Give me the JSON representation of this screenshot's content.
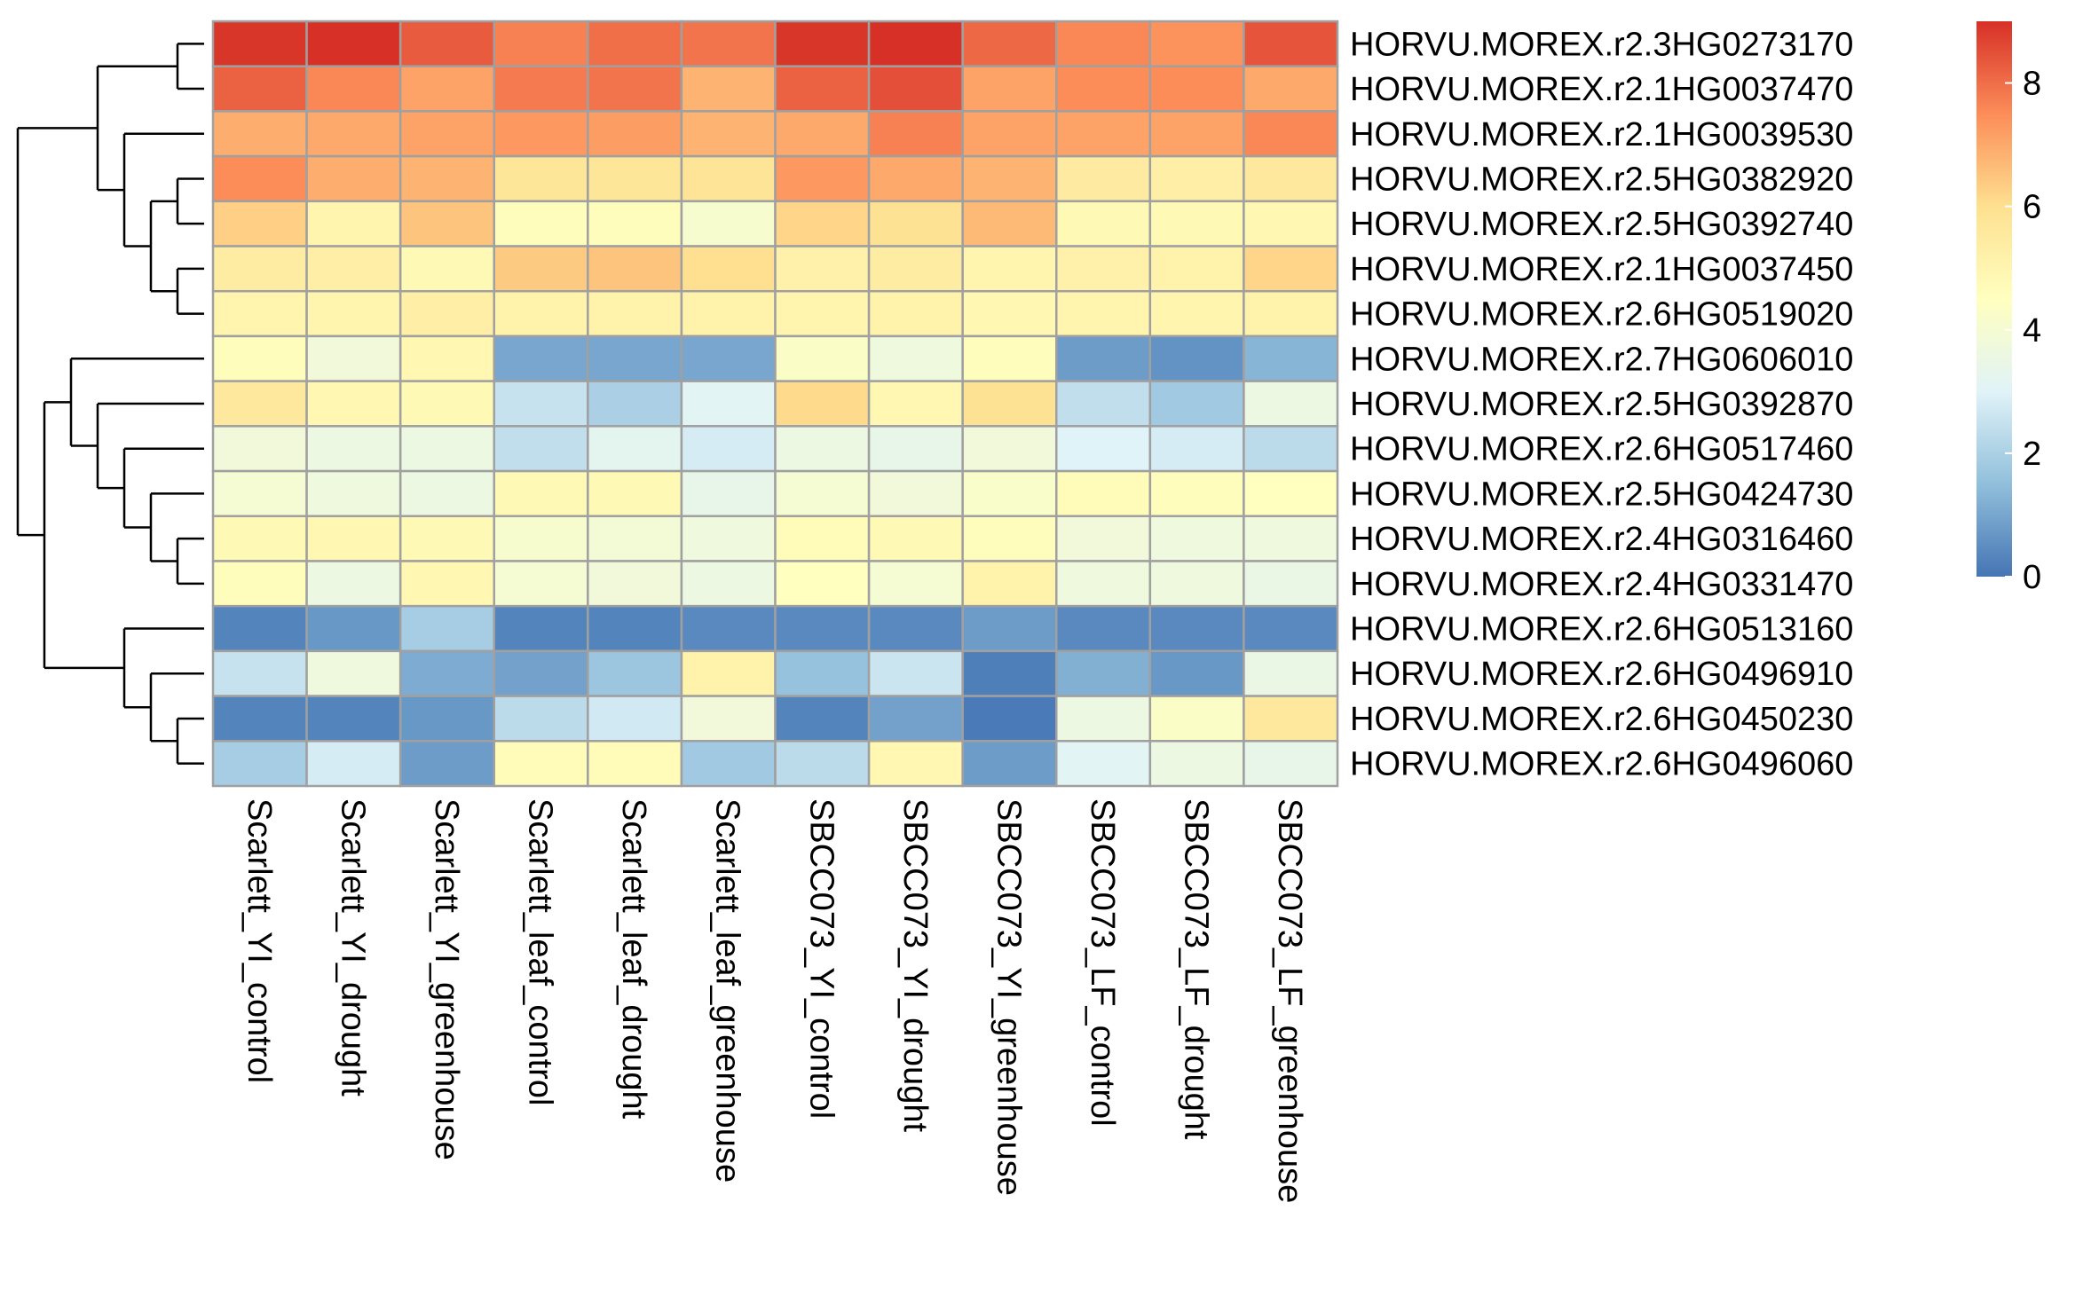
{
  "chart_data": {
    "type": "heatmap",
    "title": "",
    "columns": [
      "Scarlett_YI_control",
      "Scarlett_YI_drought",
      "Scarlett_YI_greenhouse",
      "Scarlett_leaf_control",
      "Scarlett_leaf_drought",
      "Scarlett_leaf_greenhouse",
      "SBCC073_YI_control",
      "SBCC073_YI_drought",
      "SBCC073_YI_greenhouse",
      "SBCC073_LF_control",
      "SBCC073_LF_drought",
      "SBCC073_LF_greenhouse"
    ],
    "rows": [
      "HORVU.MOREX.r2.3HG0273170",
      "HORVU.MOREX.r2.1HG0037470",
      "HORVU.MOREX.r2.1HG0039530",
      "HORVU.MOREX.r2.5HG0382920",
      "HORVU.MOREX.r2.5HG0392740",
      "HORVU.MOREX.r2.1HG0037450",
      "HORVU.MOREX.r2.6HG0519020",
      "HORVU.MOREX.r2.7HG0606010",
      "HORVU.MOREX.r2.5HG0392870",
      "HORVU.MOREX.r2.6HG0517460",
      "HORVU.MOREX.r2.5HG0424730",
      "HORVU.MOREX.r2.4HG0316460",
      "HORVU.MOREX.r2.4HG0331470",
      "HORVU.MOREX.r2.6HG0513160",
      "HORVU.MOREX.r2.6HG0496910",
      "HORVU.MOREX.r2.6HG0450230",
      "HORVU.MOREX.r2.6HG0496060"
    ],
    "values": [
      [
        8.9,
        9.0,
        8.3,
        7.7,
        8.0,
        7.9,
        8.9,
        9.0,
        8.1,
        7.6,
        7.4,
        8.4
      ],
      [
        8.2,
        7.6,
        7.1,
        7.8,
        7.9,
        6.8,
        8.2,
        8.5,
        7.1,
        7.5,
        7.5,
        7.0
      ],
      [
        6.9,
        7.0,
        7.1,
        7.3,
        7.2,
        6.8,
        7.0,
        7.7,
        7.1,
        7.1,
        7.1,
        7.6
      ],
      [
        7.5,
        6.9,
        6.8,
        5.7,
        5.7,
        5.8,
        7.3,
        7.0,
        6.8,
        5.5,
        5.3,
        5.6
      ],
      [
        6.3,
        5.0,
        6.5,
        4.6,
        4.6,
        4.1,
        6.2,
        5.9,
        6.7,
        4.8,
        4.8,
        4.9
      ],
      [
        5.4,
        5.3,
        4.8,
        6.4,
        6.5,
        6.0,
        5.2,
        5.4,
        5.0,
        5.2,
        5.1,
        6.2
      ],
      [
        5.0,
        5.0,
        5.3,
        5.1,
        5.1,
        5.1,
        5.0,
        5.1,
        4.9,
        5.0,
        5.0,
        5.1
      ],
      [
        4.6,
        3.8,
        4.9,
        1.0,
        1.0,
        1.0,
        4.3,
        3.7,
        4.6,
        0.8,
        0.6,
        1.3
      ],
      [
        5.6,
        4.9,
        4.8,
        2.5,
        2.0,
        3.1,
        6.1,
        4.9,
        5.9,
        2.4,
        1.8,
        3.6
      ],
      [
        3.8,
        3.6,
        3.6,
        2.4,
        3.2,
        2.8,
        3.6,
        3.4,
        3.8,
        3.0,
        2.8,
        2.3
      ],
      [
        4.0,
        3.7,
        3.6,
        4.8,
        4.8,
        3.4,
        4.0,
        3.8,
        4.2,
        4.7,
        4.6,
        4.5
      ],
      [
        4.8,
        4.9,
        4.8,
        4.1,
        3.9,
        3.7,
        4.7,
        4.8,
        4.6,
        3.8,
        3.7,
        3.7
      ],
      [
        4.6,
        3.6,
        4.9,
        4.0,
        3.8,
        3.6,
        4.5,
        4.0,
        5.1,
        3.7,
        3.7,
        3.5
      ],
      [
        0.3,
        0.7,
        1.9,
        0.3,
        0.3,
        0.4,
        0.4,
        0.4,
        0.8,
        0.4,
        0.4,
        0.4
      ],
      [
        2.5,
        3.7,
        1.1,
        0.9,
        1.7,
        5.1,
        1.6,
        2.6,
        0.2,
        1.2,
        0.7,
        3.5
      ],
      [
        0.3,
        0.3,
        0.7,
        2.3,
        2.7,
        3.8,
        0.3,
        0.9,
        0.1,
        3.6,
        4.3,
        5.6
      ],
      [
        1.9,
        2.8,
        0.8,
        4.7,
        4.7,
        1.8,
        2.3,
        4.9,
        0.8,
        3.1,
        3.6,
        3.4
      ]
    ],
    "scale": {
      "min": 0,
      "max": 9
    },
    "colorbar_ticks": [
      0,
      2,
      4,
      6,
      8
    ],
    "colormap": [
      "#4575b4",
      "#91bfdb",
      "#e0f3f8",
      "#ffffbf",
      "#fee090",
      "#fc8d59",
      "#d73027"
    ],
    "cell_border_color": "#a0a0a0",
    "legend_placement": "right",
    "row_dendrogram": true,
    "column_dendrogram": false
  }
}
